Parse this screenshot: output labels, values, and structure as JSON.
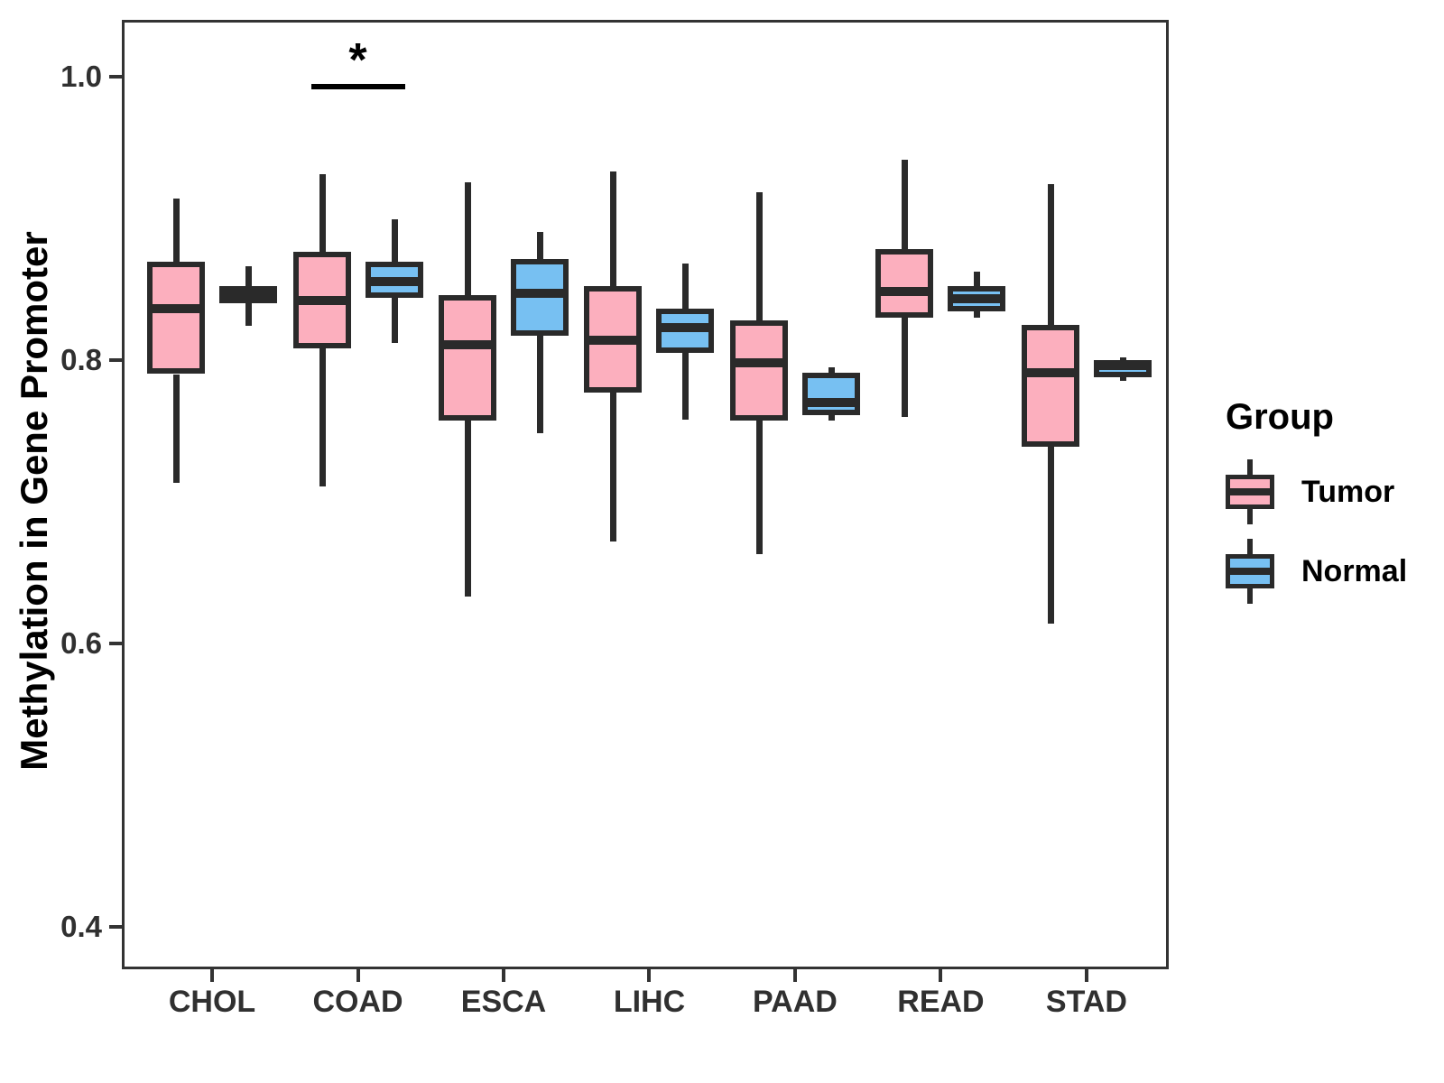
{
  "figure": {
    "y_axis_title": "Methylation in Gene Promoter"
  },
  "legend": {
    "title": "Group",
    "position": "right",
    "items": [
      {
        "label": "Tumor",
        "color": "#FCAFBE"
      },
      {
        "label": "Normal",
        "color": "#77C0F2"
      }
    ]
  },
  "colors": {
    "tumor_fill": "#FCAFBE",
    "normal_fill": "#77C0F2",
    "box_line": "#2a2a2a",
    "axis_line": "#333333",
    "tick_text": "#303030",
    "background": "#ffffff"
  },
  "chart_data": {
    "type": "boxplot",
    "title": "",
    "xlabel": "",
    "ylabel": "Methylation in Gene Promoter",
    "categories": [
      "CHOL",
      "COAD",
      "ESCA",
      "LIHC",
      "PAAD",
      "READ",
      "STAD"
    ],
    "groups": [
      "Tumor",
      "Normal"
    ],
    "ylim": [
      0.372,
      1.038
    ],
    "yticks": [
      1.0,
      0.8,
      0.6,
      0.4
    ],
    "ytick_labels": [
      "1.0",
      "0.8",
      "0.6",
      "0.4"
    ],
    "grid": false,
    "legend_position": "right",
    "series": [
      {
        "name": "Tumor",
        "fill": "#FCAFBE",
        "stats": [
          {
            "category": "CHOL",
            "min": 0.713,
            "q1": 0.79,
            "median": 0.836,
            "q3": 0.869,
            "max": 0.914
          },
          {
            "category": "COAD",
            "min": 0.711,
            "q1": 0.808,
            "median": 0.842,
            "q3": 0.876,
            "max": 0.931
          },
          {
            "category": "ESCA",
            "min": 0.633,
            "q1": 0.757,
            "median": 0.811,
            "q3": 0.846,
            "max": 0.925
          },
          {
            "category": "LIHC",
            "min": 0.672,
            "q1": 0.777,
            "median": 0.814,
            "q3": 0.852,
            "max": 0.933
          },
          {
            "category": "PAAD",
            "min": 0.663,
            "q1": 0.757,
            "median": 0.798,
            "q3": 0.828,
            "max": 0.918
          },
          {
            "category": "READ",
            "min": 0.76,
            "q1": 0.83,
            "median": 0.848,
            "q3": 0.878,
            "max": 0.941
          },
          {
            "category": "STAD",
            "min": 0.614,
            "q1": 0.739,
            "median": 0.791,
            "q3": 0.825,
            "max": 0.924
          }
        ]
      },
      {
        "name": "Normal",
        "fill": "#77C0F2",
        "stats": [
          {
            "category": "CHOL",
            "min": 0.824,
            "q1": 0.84,
            "median": 0.845,
            "q3": 0.852,
            "max": 0.866
          },
          {
            "category": "COAD",
            "min": 0.812,
            "q1": 0.844,
            "median": 0.855,
            "q3": 0.869,
            "max": 0.899
          },
          {
            "category": "ESCA",
            "min": 0.748,
            "q1": 0.817,
            "median": 0.847,
            "q3": 0.871,
            "max": 0.89
          },
          {
            "category": "LIHC",
            "min": 0.758,
            "q1": 0.805,
            "median": 0.823,
            "q3": 0.836,
            "max": 0.868
          },
          {
            "category": "PAAD",
            "min": 0.757,
            "q1": 0.761,
            "median": 0.77,
            "q3": 0.791,
            "max": 0.795
          },
          {
            "category": "READ",
            "min": 0.83,
            "q1": 0.834,
            "median": 0.843,
            "q3": 0.852,
            "max": 0.862
          },
          {
            "category": "STAD",
            "min": 0.785,
            "q1": 0.788,
            "median": 0.796,
            "q3": 0.8,
            "max": 0.802
          }
        ]
      }
    ],
    "significance": [
      {
        "category": "COAD",
        "label": "*",
        "bar_y": 0.995
      }
    ]
  }
}
